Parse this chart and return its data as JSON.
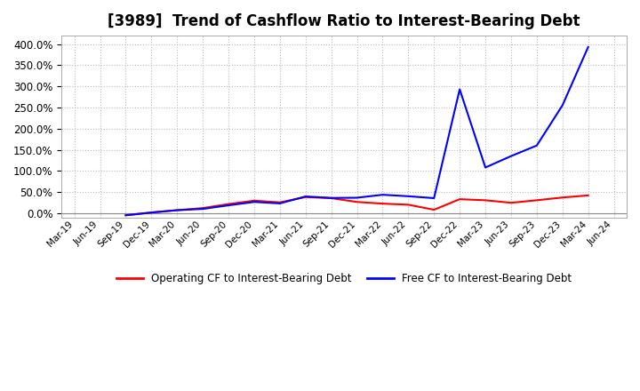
{
  "title": "[3989]  Trend of Cashflow Ratio to Interest-Bearing Debt",
  "title_fontsize": 12,
  "background_color": "#ffffff",
  "plot_bg_color": "#ffffff",
  "grid_color": "#bbbbbb",
  "x_labels": [
    "Mar-19",
    "Jun-19",
    "Sep-19",
    "Dec-19",
    "Mar-20",
    "Jun-20",
    "Sep-20",
    "Dec-20",
    "Mar-21",
    "Jun-21",
    "Sep-21",
    "Dec-21",
    "Mar-22",
    "Jun-22",
    "Sep-22",
    "Dec-22",
    "Mar-23",
    "Jun-23",
    "Sep-23",
    "Dec-23",
    "Mar-24",
    "Jun-24"
  ],
  "operating_cf": [
    null,
    null,
    -0.05,
    0.015,
    0.07,
    0.12,
    0.215,
    0.295,
    0.255,
    0.38,
    0.355,
    0.265,
    0.225,
    0.2,
    0.08,
    0.33,
    0.305,
    0.245,
    0.305,
    0.37,
    0.42,
    null
  ],
  "free_cf": [
    null,
    null,
    -0.05,
    0.015,
    0.07,
    0.1,
    0.185,
    0.265,
    0.23,
    0.395,
    0.36,
    0.365,
    0.435,
    0.4,
    0.355,
    2.93,
    1.08,
    1.35,
    1.6,
    2.55,
    3.93,
    null
  ],
  "operating_color": "#ff0000",
  "free_color": "#0000ff",
  "line_width": 1.5,
  "ylim_min": -0.1,
  "ylim_max": 4.2,
  "ytick_step": 0.5,
  "legend_labels": [
    "Operating CF to Interest-Bearing Debt",
    "Free CF to Interest-Bearing Debt"
  ]
}
